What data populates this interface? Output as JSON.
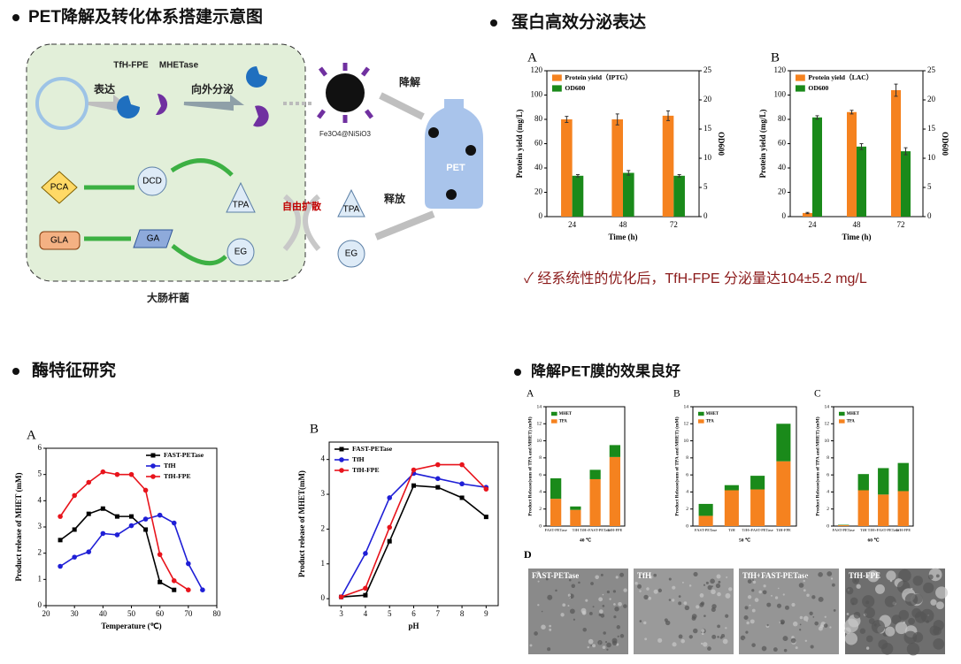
{
  "headings": [
    "PET降解及转化体系搭建示意图",
    "蛋白高效分泌表达",
    "酶特征研究",
    "降解PET膜的效果良好"
  ],
  "diagram": {
    "labels": [
      "TfH-FPE",
      "MHETase",
      "表达",
      "向外分泌",
      "Fe3O4@NiSiO3",
      "降解",
      "PET",
      "释放",
      "自由扩散",
      "TPA",
      "EG",
      "TPA",
      "EG",
      "DCD",
      "GA",
      "PCA",
      "GLA",
      "大肠杆菌"
    ]
  },
  "note": "✓ 经系统性的优化后，TfH-FPE 分泌量达104±5.2 mg/L",
  "sem": {
    "panel": "D",
    "labels": [
      "FAST-PETase",
      "TfH",
      "TfH+FAST-PETase",
      "TfH-FPE"
    ]
  },
  "chart_data": [
    {
      "type": "bar",
      "panel": "A",
      "categories": [
        "24",
        "48",
        "72"
      ],
      "xlabel": "Time (h)",
      "ylabel": "Protein yield (mg/L)",
      "y2label": "OD600",
      "ylim": [
        0,
        120
      ],
      "yticks": [
        0,
        20,
        40,
        60,
        80,
        100,
        120
      ],
      "y2lim": [
        0,
        25
      ],
      "y2ticks": [
        0,
        5,
        10,
        15,
        20,
        25
      ],
      "legend": "upper left",
      "series": [
        {
          "name": "Protein yield（IPTG）",
          "color": "#f5821f",
          "values": [
            80,
            80,
            83
          ],
          "errors": [
            2.5,
            4.5,
            4
          ]
        },
        {
          "name": "OD600",
          "color": "#1a8a1a",
          "axis": "y2",
          "values": [
            7,
            7.5,
            7
          ],
          "errors": [
            0.2,
            0.4,
            0.2
          ]
        }
      ]
    },
    {
      "type": "bar",
      "panel": "B",
      "categories": [
        "24",
        "48",
        "72"
      ],
      "xlabel": "Time (h)",
      "ylabel": "Protein yield (mg/L)",
      "y2label": "OD600",
      "ylim": [
        0,
        120
      ],
      "yticks": [
        0,
        20,
        40,
        60,
        80,
        100,
        120
      ],
      "y2lim": [
        0,
        25
      ],
      "y2ticks": [
        0,
        5,
        10,
        15,
        20,
        25
      ],
      "legend": "upper left",
      "series": [
        {
          "name": "Protein yield（LAC）",
          "color": "#f5821f",
          "values": [
            3,
            86,
            104
          ],
          "errors": [
            0.5,
            1.5,
            5
          ]
        },
        {
          "name": "OD600",
          "color": "#1a8a1a",
          "axis": "y2",
          "values": [
            17,
            12,
            11.2
          ],
          "errors": [
            0.3,
            0.5,
            0.6
          ]
        }
      ]
    },
    {
      "type": "line",
      "panel": "A",
      "xlabel": "Temperature (℃)",
      "ylabel": "Product release of MHET (mM)",
      "xlim": [
        20,
        80
      ],
      "xticks": [
        20,
        30,
        40,
        50,
        60,
        70,
        80
      ],
      "ylim": [
        0,
        6
      ],
      "yticks": [
        0,
        1,
        2,
        3,
        4,
        5,
        6
      ],
      "legend": "upper right",
      "series": [
        {
          "name": "FAST-PETase",
          "color": "#000000",
          "marker": "square",
          "x": [
            25,
            30,
            35,
            40,
            45,
            50,
            55,
            60,
            65
          ],
          "values": [
            2.5,
            2.9,
            3.5,
            3.7,
            3.4,
            3.4,
            2.9,
            0.9,
            0.6
          ]
        },
        {
          "name": "TfH",
          "color": "#1f1fd6",
          "marker": "circle",
          "x": [
            25,
            30,
            35,
            40,
            45,
            50,
            55,
            60,
            65,
            70,
            75
          ],
          "values": [
            1.5,
            1.85,
            2.05,
            2.75,
            2.7,
            3.05,
            3.3,
            3.45,
            3.15,
            1.6,
            0.6
          ]
        },
        {
          "name": "TfH-FPE",
          "color": "#e8141c",
          "marker": "circle",
          "x": [
            25,
            30,
            35,
            40,
            45,
            50,
            55,
            60,
            65,
            70
          ],
          "values": [
            3.4,
            4.2,
            4.7,
            5.1,
            5.0,
            5.0,
            4.4,
            1.95,
            0.95,
            0.6
          ]
        }
      ]
    },
    {
      "type": "line",
      "panel": "B",
      "xlabel": "pH",
      "ylabel": "Product release of MHET(mM)",
      "xlim": [
        2.5,
        9.5
      ],
      "xticks": [
        3,
        4,
        5,
        6,
        7,
        8,
        9
      ],
      "ylim": [
        -0.2,
        4.5
      ],
      "yticks": [
        0,
        1,
        2,
        3,
        4
      ],
      "legend": "upper left",
      "series": [
        {
          "name": "FAST-PETase",
          "color": "#000000",
          "marker": "square",
          "x": [
            3,
            4,
            5,
            6,
            7,
            8,
            9
          ],
          "values": [
            0.05,
            0.1,
            1.65,
            3.25,
            3.2,
            2.9,
            2.35
          ]
        },
        {
          "name": "TfH",
          "color": "#1f1fd6",
          "marker": "circle",
          "x": [
            3,
            4,
            5,
            6,
            7,
            8,
            9
          ],
          "values": [
            0.05,
            1.3,
            2.9,
            3.6,
            3.45,
            3.3,
            3.2
          ]
        },
        {
          "name": "TfH-FPE",
          "color": "#e8141c",
          "marker": "circle",
          "x": [
            3,
            4,
            5,
            6,
            7,
            8,
            9
          ],
          "values": [
            0.05,
            0.3,
            2.05,
            3.7,
            3.85,
            3.85,
            3.15
          ]
        }
      ]
    },
    {
      "type": "stacked_bar",
      "panel": "A",
      "xlabel": "40 ℃",
      "ylabel": "Product Release(sum of TPA and MHET) (mM)",
      "categories": [
        "FAST-PETase",
        "TfH",
        "TfH+FAST-PETase",
        "TfH-FPE"
      ],
      "ylim": [
        0,
        14
      ],
      "yticks": [
        0,
        2,
        4,
        6,
        8,
        10,
        12,
        14
      ],
      "legend": "upper left",
      "series": [
        {
          "name": "TPA",
          "color": "#f5821f",
          "values": [
            3.2,
            1.9,
            5.5,
            8.1
          ]
        },
        {
          "name": "MHET",
          "color": "#1a8a1a",
          "values": [
            2.4,
            0.4,
            1.1,
            1.4
          ]
        }
      ]
    },
    {
      "type": "stacked_bar",
      "panel": "B",
      "xlabel": "50 ℃",
      "ylabel": "Product Release(sum of TPA and MHET) (mM)",
      "categories": [
        "FAST-PETase",
        "TfH",
        "TfH+FAST-PETase",
        "TfH-FPE"
      ],
      "ylim": [
        0,
        14
      ],
      "yticks": [
        0,
        2,
        4,
        6,
        8,
        10,
        12,
        14
      ],
      "legend": "upper left",
      "series": [
        {
          "name": "TPA",
          "color": "#f5821f",
          "values": [
            1.2,
            4.2,
            4.3,
            7.6
          ]
        },
        {
          "name": "MHET",
          "color": "#1a8a1a",
          "values": [
            1.4,
            0.6,
            1.6,
            4.4
          ]
        }
      ]
    },
    {
      "type": "stacked_bar",
      "panel": "C",
      "xlabel": "60 ℃",
      "ylabel": "Product Release(sum of TPA and MHET) (mM)",
      "categories": [
        "FAST-PETase",
        "TfH",
        "TfH+FAST-PETase",
        "TfH-FPE"
      ],
      "ylim": [
        0,
        14
      ],
      "yticks": [
        0,
        2,
        4,
        6,
        8,
        10,
        12,
        14
      ],
      "legend": "upper left",
      "series": [
        {
          "name": "TPA",
          "color": "#f5821f",
          "values": [
            0.1,
            4.2,
            3.7,
            4.1
          ]
        },
        {
          "name": "MHET",
          "color": "#1a8a1a",
          "values": [
            0.05,
            1.9,
            3.1,
            3.3
          ]
        }
      ]
    }
  ]
}
